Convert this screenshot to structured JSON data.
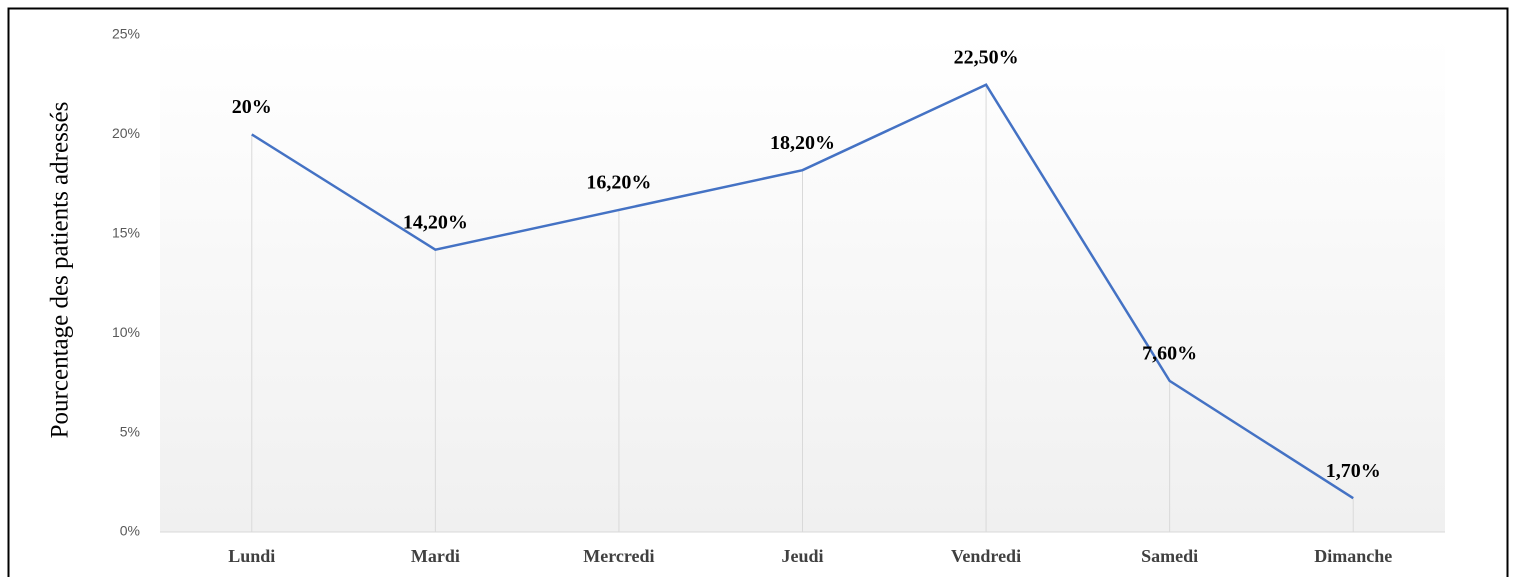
{
  "chart_data": {
    "type": "line",
    "ylabel": "Pourcentage des patients adressés",
    "categories": [
      "Lundi",
      "Mardi",
      "Mercredi",
      "Jeudi",
      "Vendredi",
      "Samedi",
      "Dimanche"
    ],
    "series": [
      {
        "color": "#4472c4",
        "values": [
          20,
          14.2,
          16.2,
          18.2,
          22.5,
          7.6,
          1.7
        ],
        "value_labels": [
          "20%",
          "14,20%",
          "16,20%",
          "18,20%",
          "22,50%",
          "7,60%",
          "1,70%"
        ]
      }
    ],
    "ylim": [
      0,
      25
    ],
    "yticks": [
      {
        "value": 0,
        "label": "0%"
      },
      {
        "value": 5,
        "label": "5%"
      },
      {
        "value": 10,
        "label": "10%"
      },
      {
        "value": 15,
        "label": "15%"
      },
      {
        "value": 20,
        "label": "20%"
      },
      {
        "value": 25,
        "label": "25%"
      }
    ],
    "drop_lines": true
  }
}
